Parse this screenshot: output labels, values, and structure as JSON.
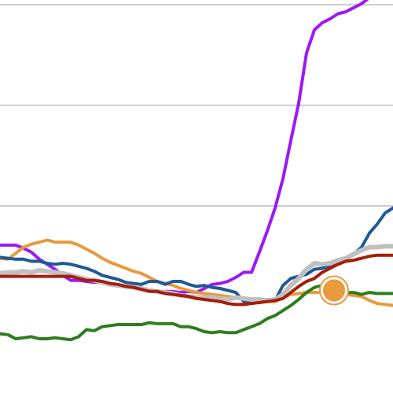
{
  "chart_data": {
    "type": "line",
    "x": [
      0,
      10,
      20,
      30,
      40,
      50,
      60,
      70,
      80,
      90,
      100,
      110,
      120,
      130,
      140,
      150,
      160,
      170,
      180,
      190,
      200,
      210,
      220,
      230,
      240,
      250,
      260,
      270,
      280,
      290,
      300,
      310,
      320,
      330,
      340,
      350,
      360,
      370,
      380,
      390,
      400,
      410,
      420,
      430,
      440,
      450,
      460,
      470,
      480,
      490,
      500
    ],
    "xlim": [
      0,
      500
    ],
    "ylim": [
      0,
      4
    ],
    "gridlines": [
      1,
      2,
      3,
      4
    ],
    "grid": true,
    "legend": "none",
    "series": [
      {
        "color": "#9b19f5",
        "values": [
          0.61,
          0.61,
          0.61,
          0.58,
          0.54,
          0.47,
          0.42,
          0.37,
          0.31,
          0.26,
          0.26,
          0.25,
          0.24,
          0.24,
          0.23,
          0.21,
          0.2,
          0.19,
          0.17,
          0.16,
          0.15,
          0.15,
          0.15,
          0.14,
          0.15,
          0.14,
          0.18,
          0.22,
          0.23,
          0.25,
          0.29,
          0.34,
          0.34,
          0.54,
          0.75,
          0.98,
          1.27,
          1.65,
          2.02,
          2.52,
          2.75,
          2.82,
          2.86,
          2.91,
          2.93,
          2.97,
          3.01,
          3.07,
          3.12,
          3.17,
          3.19
        ]
      },
      {
        "color": "#e89a3c",
        "values": [
          0.48,
          0.47,
          0.53,
          0.59,
          0.62,
          0.64,
          0.66,
          0.64,
          0.64,
          0.64,
          0.61,
          0.57,
          0.53,
          0.48,
          0.44,
          0.41,
          0.38,
          0.35,
          0.33,
          0.29,
          0.25,
          0.23,
          0.21,
          0.18,
          0.16,
          0.14,
          0.13,
          0.12,
          0.11,
          0.1,
          0.09,
          0.07,
          0.05,
          0.04,
          0.05,
          0.05,
          0.09,
          0.12,
          0.13,
          0.14,
          0.14,
          0.14,
          0.13,
          0.12,
          0.12,
          0.11,
          0.1,
          0.06,
          0.03,
          0.02,
          0.01
        ]
      },
      {
        "color": "#1f5a96",
        "values": [
          0.49,
          0.48,
          0.47,
          0.47,
          0.45,
          0.45,
          0.43,
          0.42,
          0.43,
          0.42,
          0.4,
          0.38,
          0.35,
          0.31,
          0.29,
          0.27,
          0.24,
          0.23,
          0.22,
          0.25,
          0.25,
          0.22,
          0.25,
          0.25,
          0.22,
          0.2,
          0.21,
          0.19,
          0.18,
          0.16,
          0.14,
          0.05,
          0.06,
          0.06,
          0.07,
          0.06,
          0.21,
          0.28,
          0.3,
          0.32,
          0.37,
          0.38,
          0.41,
          0.43,
          0.46,
          0.52,
          0.59,
          0.73,
          0.82,
          0.93,
          0.98
        ]
      },
      {
        "color": "#c0c0c0",
        "values": [
          0.33,
          0.34,
          0.34,
          0.35,
          0.34,
          0.36,
          0.35,
          0.34,
          0.33,
          0.31,
          0.29,
          0.27,
          0.26,
          0.24,
          0.22,
          0.21,
          0.2,
          0.19,
          0.18,
          0.16,
          0.15,
          0.14,
          0.13,
          0.11,
          0.1,
          0.09,
          0.09,
          0.09,
          0.08,
          0.07,
          0.09,
          0.08,
          0.07,
          0.07,
          0.06,
          0.07,
          0.12,
          0.21,
          0.28,
          0.37,
          0.43,
          0.42,
          0.43,
          0.46,
          0.48,
          0.52,
          0.56,
          0.59,
          0.59,
          0.6,
          0.6
        ]
      },
      {
        "color": "#a51e0a",
        "values": [
          0.3,
          0.3,
          0.3,
          0.3,
          0.3,
          0.3,
          0.3,
          0.3,
          0.3,
          0.3,
          0.28,
          0.26,
          0.26,
          0.25,
          0.23,
          0.22,
          0.2,
          0.19,
          0.17,
          0.15,
          0.15,
          0.13,
          0.12,
          0.11,
          0.1,
          0.08,
          0.07,
          0.06,
          0.05,
          0.03,
          0.02,
          0.02,
          0.03,
          0.04,
          0.05,
          0.06,
          0.08,
          0.14,
          0.2,
          0.25,
          0.28,
          0.34,
          0.38,
          0.42,
          0.45,
          0.46,
          0.48,
          0.5,
          0.51,
          0.51,
          0.51
        ]
      },
      {
        "color": "#2e7d1e",
        "values": [
          -0.27,
          -0.28,
          -0.32,
          -0.31,
          -0.3,
          -0.32,
          -0.32,
          -0.31,
          -0.32,
          -0.33,
          -0.3,
          -0.23,
          -0.24,
          -0.2,
          -0.19,
          -0.18,
          -0.18,
          -0.18,
          -0.18,
          -0.16,
          -0.17,
          -0.17,
          -0.17,
          -0.2,
          -0.2,
          -0.22,
          -0.25,
          -0.26,
          -0.25,
          -0.26,
          -0.26,
          -0.23,
          -0.2,
          -0.17,
          -0.12,
          -0.09,
          -0.04,
          0.01,
          0.07,
          0.14,
          0.19,
          0.21,
          0.19,
          0.16,
          0.14,
          0.14,
          0.12,
          0.14,
          0.13,
          0.13,
          0.13
        ]
      }
    ],
    "marker": {
      "x": 425,
      "y": 0.16,
      "fill": "#e89a3c",
      "stroke": "#ffffff"
    }
  }
}
